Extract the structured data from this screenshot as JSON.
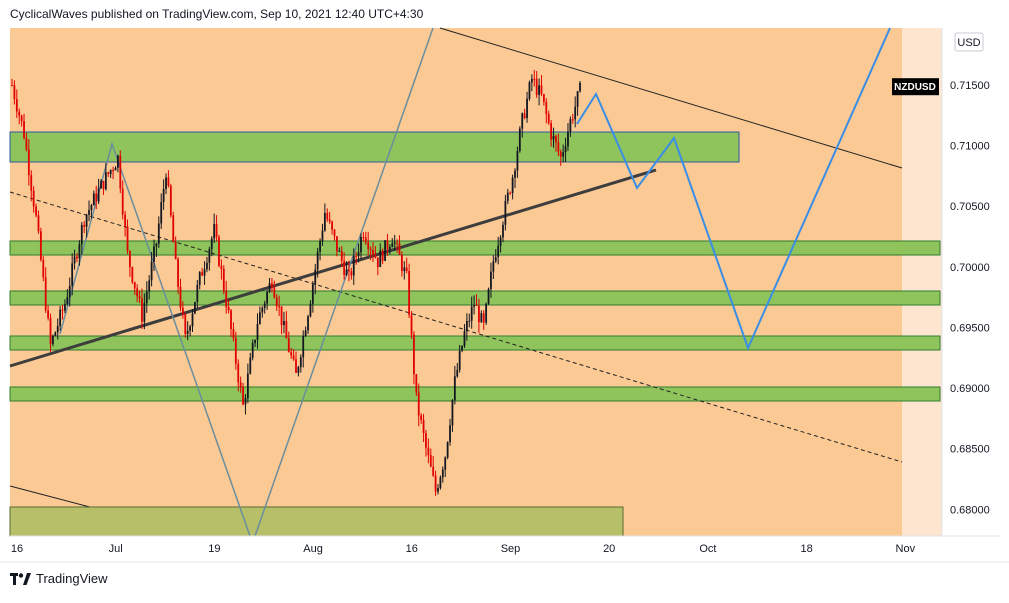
{
  "header": {
    "text": "CyclicalWaves published on TradingView.com, Sep 10, 2021 12:40 UTC+4:30"
  },
  "footer": {
    "brand": "TradingView",
    "logo_icon": "tradingview-logo-icon"
  },
  "colors": {
    "background": "#fde5cf",
    "zone_fill": "#fbc994",
    "green_zone": "#8fc35b",
    "green_zone_border": "#2f7d2f",
    "blue_zone_border": "#2c5aa0",
    "bull_candle": "#131722",
    "bear_candle": "#e00000",
    "forecast_line": "#3a8ee6",
    "channel_line": "#6b8e9e",
    "trend_line": "#3d3d3d",
    "badge_bg": "#000000"
  },
  "chart_data": {
    "type": "candlestick",
    "symbol": "NZDUSD",
    "currency": "USD",
    "ylim": [
      0.6778,
      0.7197
    ],
    "y_ticks": [
      "0.71500",
      "0.71000",
      "0.70500",
      "0.70000",
      "0.69500",
      "0.69000",
      "0.68500",
      "0.68000"
    ],
    "x_ticks": [
      "16",
      "Jul",
      "19",
      "Aug",
      "16",
      "Sep",
      "20",
      "Oct",
      "18",
      "Nov"
    ],
    "price_badge": "NZDUSD",
    "price_badge_value": 0.7149,
    "candle_path": [
      {
        "t": 0,
        "p": 0.715
      },
      {
        "t": 5,
        "p": 0.711
      },
      {
        "t": 10,
        "p": 0.704
      },
      {
        "t": 16,
        "p": 0.6935
      },
      {
        "t": 22,
        "p": 0.697
      },
      {
        "t": 30,
        "p": 0.704
      },
      {
        "t": 38,
        "p": 0.707
      },
      {
        "t": 44,
        "p": 0.709
      },
      {
        "t": 48,
        "p": 0.701
      },
      {
        "t": 54,
        "p": 0.696
      },
      {
        "t": 60,
        "p": 0.702
      },
      {
        "t": 64,
        "p": 0.708
      },
      {
        "t": 68,
        "p": 0.7
      },
      {
        "t": 72,
        "p": 0.694
      },
      {
        "t": 78,
        "p": 0.699
      },
      {
        "t": 84,
        "p": 0.703
      },
      {
        "t": 90,
        "p": 0.696
      },
      {
        "t": 96,
        "p": 0.6885
      },
      {
        "t": 102,
        "p": 0.6955
      },
      {
        "t": 108,
        "p": 0.699
      },
      {
        "t": 114,
        "p": 0.694
      },
      {
        "t": 118,
        "p": 0.691
      },
      {
        "t": 124,
        "p": 0.6975
      },
      {
        "t": 130,
        "p": 0.7045
      },
      {
        "t": 136,
        "p": 0.701
      },
      {
        "t": 140,
        "p": 0.699
      },
      {
        "t": 146,
        "p": 0.703
      },
      {
        "t": 152,
        "p": 0.7005
      },
      {
        "t": 158,
        "p": 0.7025
      },
      {
        "t": 164,
        "p": 0.699
      },
      {
        "t": 168,
        "p": 0.689
      },
      {
        "t": 172,
        "p": 0.685
      },
      {
        "t": 176,
        "p": 0.6815
      },
      {
        "t": 180,
        "p": 0.6845
      },
      {
        "t": 184,
        "p": 0.6905
      },
      {
        "t": 188,
        "p": 0.6945
      },
      {
        "t": 192,
        "p": 0.697
      },
      {
        "t": 196,
        "p": 0.695
      },
      {
        "t": 200,
        "p": 0.7005
      },
      {
        "t": 204,
        "p": 0.704
      },
      {
        "t": 208,
        "p": 0.7075
      },
      {
        "t": 212,
        "p": 0.712
      },
      {
        "t": 216,
        "p": 0.7155
      },
      {
        "t": 220,
        "p": 0.714
      },
      {
        "t": 224,
        "p": 0.711
      },
      {
        "t": 228,
        "p": 0.709
      },
      {
        "t": 232,
        "p": 0.712
      },
      {
        "t": 236,
        "p": 0.7145
      }
    ],
    "candle_count": 237
  }
}
